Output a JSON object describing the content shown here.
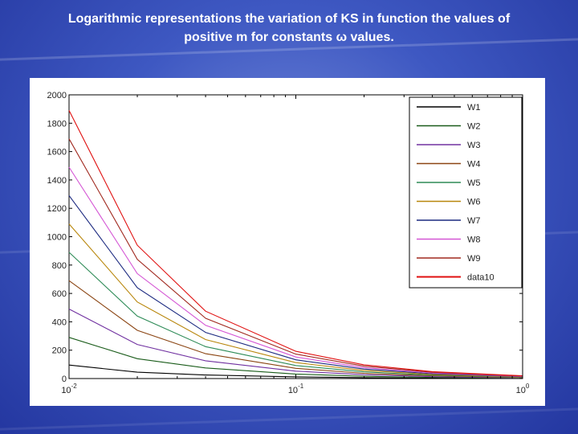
{
  "slide": {
    "title_line1": "Logarithmic representations the variation of KS in function the values of",
    "title_line2": "positive m for constants ω values."
  },
  "chart_data": {
    "type": "line",
    "x_scale": "log",
    "xlim": [
      0.01,
      1
    ],
    "ylim": [
      0,
      2000
    ],
    "xlabel": "",
    "ylabel": "",
    "grid": false,
    "legend_position": "top-right",
    "x": [
      0.01,
      0.02,
      0.04,
      0.1,
      0.2,
      0.4,
      1
    ],
    "x_ticks": [
      {
        "value": 0.01,
        "base": "10",
        "exp": "-2"
      },
      {
        "value": 0.1,
        "base": "10",
        "exp": "-1"
      },
      {
        "value": 1,
        "base": "10",
        "exp": "0"
      }
    ],
    "y_ticks": [
      0,
      200,
      400,
      600,
      800,
      1000,
      1200,
      1400,
      1600,
      1800,
      2000
    ],
    "series": [
      {
        "name": "W1",
        "color": "#000000",
        "values": [
          95,
          45,
          25,
          12,
          6,
          3,
          1
        ]
      },
      {
        "name": "W2",
        "color": "#1a5c1a",
        "values": [
          290,
          140,
          75,
          32,
          16,
          8,
          3
        ]
      },
      {
        "name": "W3",
        "color": "#7030a0",
        "values": [
          490,
          240,
          125,
          52,
          27,
          13,
          5
        ]
      },
      {
        "name": "W4",
        "color": "#8b4513",
        "values": [
          690,
          340,
          175,
          72,
          37,
          19,
          7
        ]
      },
      {
        "name": "W5",
        "color": "#2e8b57",
        "values": [
          890,
          440,
          225,
          92,
          47,
          24,
          9
        ]
      },
      {
        "name": "W6",
        "color": "#b8860b",
        "values": [
          1090,
          540,
          275,
          112,
          57,
          29,
          11
        ]
      },
      {
        "name": "W7",
        "color": "#1c2a80",
        "values": [
          1290,
          640,
          325,
          132,
          67,
          34,
          13
        ]
      },
      {
        "name": "W8",
        "color": "#d455d4",
        "values": [
          1490,
          740,
          375,
          152,
          77,
          39,
          15
        ]
      },
      {
        "name": "W9",
        "color": "#a0281e",
        "values": [
          1690,
          840,
          425,
          172,
          87,
          44,
          17
        ]
      },
      {
        "name": "data10",
        "color": "#e01010",
        "values": [
          1890,
          940,
          475,
          192,
          97,
          49,
          19
        ]
      }
    ]
  }
}
